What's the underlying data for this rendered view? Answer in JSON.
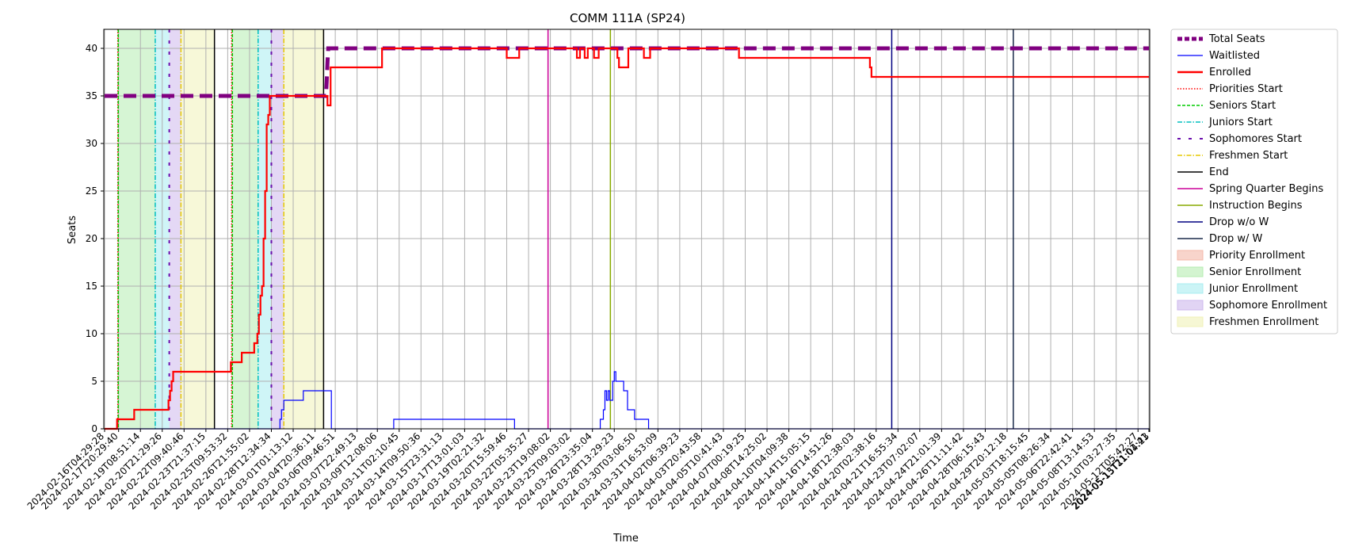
{
  "chart_data": {
    "type": "line",
    "title": "COMM 111A (SP24)",
    "xlabel": "Time",
    "ylabel": "Seats",
    "ylim": [
      0,
      42
    ],
    "xlim": [
      -0.05,
      67.05
    ],
    "grid": true,
    "legend_position": "outside-right",
    "y_ticks": [
      0,
      5,
      10,
      15,
      20,
      25,
      30,
      35,
      40
    ],
    "x_ticks": [
      "2024-02-16T04:29:28",
      "2024-02-17T20:29:40",
      "2024-02-19T08:51:14",
      "2024-02-20T21:29:26",
      "2024-02-22T09:40:46",
      "2024-02-23T21:37:15",
      "2024-02-25T09:53:32",
      "2024-02-26T21:55:02",
      "2024-02-28T12:34:34",
      "2024-03-01T01:13:12",
      "2024-03-04T20:36:11",
      "2024-03-06T09:46:51",
      "2024-03-07T22:49:13",
      "2024-03-09T12:08:06",
      "2024-03-11T02:10:45",
      "2024-03-14T09:50:36",
      "2024-03-15T23:31:13",
      "2024-03-17T13:01:03",
      "2024-03-19T02:21:32",
      "2024-03-20T15:59:46",
      "2024-03-22T05:35:27",
      "2024-03-23T19:08:02",
      "2024-03-25T09:03:02",
      "2024-03-26T23:35:04",
      "2024-03-28T13:29:23",
      "2024-03-30T03:06:50",
      "2024-03-31T16:53:09",
      "2024-04-02T06:39:23",
      "2024-04-03T20:43:58",
      "2024-04-05T10:41:43",
      "2024-04-07T00:19:25",
      "2024-04-08T14:25:02",
      "2024-04-10T04:09:38",
      "2024-04-14T15:05:15",
      "2024-04-16T14:51:26",
      "2024-04-18T12:38:03",
      "2024-04-20T02:38:16",
      "2024-04-21T16:55:34",
      "2024-04-23T07:02:07",
      "2024-04-24T21:01:39",
      "2024-04-26T11:11:42",
      "2024-04-28T06:15:43",
      "2024-04-29T20:12:18",
      "2024-05-03T18:15:45",
      "2024-05-05T08:26:34",
      "2024-05-06T22:42:41",
      "2024-05-08T13:14:53",
      "2024-05-10T03:27:35",
      "2024-05-12T05:42:27",
      "2024-05-13T21:01:41",
      "2024-05-15T11:04:23"
    ],
    "x_tick_positions": [
      0,
      0.9,
      2.3,
      3.7,
      5.1,
      6.5,
      7.9,
      9.3,
      10.7,
      12.1,
      13.5,
      14.8,
      16.2,
      17.5,
      18.9,
      20.3,
      21.7,
      23.1,
      24.4,
      25.8,
      27.2,
      28.6,
      29.9,
      31.3,
      32.7,
      34.1,
      35.5,
      36.9,
      38.3,
      39.7,
      41.1,
      42.5,
      43.9,
      45.3,
      46.7,
      48.1,
      49.5,
      50.9,
      52.3,
      53.7,
      55.1,
      56.5,
      57.9,
      59.3,
      60.7,
      62.1,
      63.5,
      64.9,
      66.3,
      67.0,
      67.05
    ],
    "series": [
      {
        "name": "Total Seats",
        "color": "#800080",
        "style": "dashed-thick",
        "x": [
          0,
          14.2,
          14.25,
          14.3,
          14.35,
          67
        ],
        "y": [
          35,
          35,
          36.5,
          38.5,
          40,
          40
        ]
      },
      {
        "name": "Waitlisted",
        "color": "#0000ff",
        "style": "step",
        "x": [
          0,
          11.2,
          11.25,
          11.35,
          11.5,
          12.7,
          12.75,
          14.5,
          14.55,
          18.5,
          18.55,
          26.3,
          26.35,
          31.8,
          31.9,
          32.0,
          32.1,
          32.2,
          32.3,
          32.4,
          32.5,
          32.6,
          32.7,
          32.8,
          32.9,
          33.3,
          33.4,
          33.55,
          33.7,
          34.0,
          34.2,
          34.4,
          34.6,
          34.9,
          35.0,
          67
        ],
        "y": [
          0,
          0,
          1,
          2,
          3,
          3,
          4,
          4,
          0,
          0,
          1,
          0,
          0,
          1,
          1,
          2,
          4,
          3,
          4,
          3,
          3,
          5,
          6,
          5,
          5,
          4,
          4,
          2,
          2,
          1,
          1,
          1,
          1,
          0,
          0,
          0
        ]
      },
      {
        "name": "Enrolled",
        "color": "#ff0000",
        "style": "step",
        "x": [
          0,
          0.8,
          1.9,
          4.0,
          4.1,
          4.2,
          4.3,
          4.4,
          7.9,
          8.1,
          8.8,
          9.6,
          9.8,
          9.9,
          10.0,
          10.1,
          10.2,
          10.3,
          10.4,
          10.5,
          10.6,
          10.7,
          10.8,
          10.9,
          11.0,
          11.1,
          11.3,
          11.5,
          14.3,
          14.5,
          17.8,
          25.8,
          26.6,
          30.3,
          30.5,
          30.8,
          31.0,
          31.4,
          31.7,
          32.9,
          33.0,
          33.6,
          34.1,
          34.6,
          35.0,
          35.3,
          40.7,
          49.1,
          49.2,
          67
        ],
        "y": [
          0,
          1,
          2,
          2,
          3,
          4,
          5,
          6,
          6,
          7,
          8,
          9,
          10,
          12,
          14,
          15,
          20,
          25,
          32,
          33,
          35,
          35,
          35,
          35,
          35,
          35,
          35,
          35,
          34,
          38,
          40,
          39,
          40,
          39,
          40,
          39,
          40,
          39,
          40,
          39,
          38,
          40,
          40,
          39,
          40,
          40,
          39,
          38,
          37,
          37
        ]
      }
    ],
    "vertical_lines": [
      {
        "name": "Priorities Start",
        "color": "#ff0000",
        "style": "dotted",
        "x": [
          0.85,
          8.15
        ]
      },
      {
        "name": "Seniors Start",
        "color": "#00cc00",
        "style": "dashed",
        "x": [
          0.88,
          8.2
        ]
      },
      {
        "name": "Juniors Start",
        "color": "#00bfbf",
        "style": "dashdot",
        "x": [
          3.25,
          9.85
        ]
      },
      {
        "name": "Sophomores Start",
        "color": "#6a0dad",
        "style": "dashed-loose",
        "x": [
          4.15,
          10.7
        ]
      },
      {
        "name": "Freshmen Start",
        "color": "#e6c800",
        "style": "dashdot",
        "x": [
          4.9,
          11.5
        ]
      },
      {
        "name": "End",
        "color": "#000000",
        "style": "solid",
        "x": [
          7.05,
          14.05
        ]
      },
      {
        "name": "Spring Quarter Begins",
        "color": "#cc0099",
        "style": "solid",
        "x": [
          28.45
        ]
      },
      {
        "name": "Instruction Begins",
        "color": "#88aa00",
        "style": "solid",
        "x": [
          32.45
        ]
      },
      {
        "name": "Drop w/o W",
        "color": "#000080",
        "style": "solid",
        "x": [
          50.5
        ]
      },
      {
        "name": "Drop w/ W",
        "color": "#1a2a4a",
        "style": "solid",
        "x": [
          58.3
        ]
      }
    ],
    "spans": [
      {
        "name": "Priority Enrollment",
        "color": "#f4b8a8",
        "ranges": [
          [
            0.85,
            0.88
          ],
          [
            8.15,
            8.2
          ]
        ]
      },
      {
        "name": "Senior Enrollment",
        "color": "#b5ecb0",
        "ranges": [
          [
            0.88,
            3.25
          ],
          [
            8.2,
            9.85
          ]
        ]
      },
      {
        "name": "Junior Enrollment",
        "color": "#a8ecf0",
        "ranges": [
          [
            3.25,
            4.15
          ],
          [
            9.85,
            10.7
          ]
        ]
      },
      {
        "name": "Sophomore Enrollment",
        "color": "#cdb8ec",
        "ranges": [
          [
            4.15,
            4.9
          ],
          [
            10.7,
            11.5
          ]
        ]
      },
      {
        "name": "Freshmen Enrollment",
        "color": "#f0f2b8",
        "ranges": [
          [
            4.9,
            7.05
          ],
          [
            11.5,
            14.05
          ]
        ]
      }
    ],
    "legend": [
      {
        "label": "Total Seats",
        "kind": "line",
        "color": "#800080",
        "dash": "6,3",
        "width": 5
      },
      {
        "label": "Waitlisted",
        "kind": "line",
        "color": "#0000ff",
        "dash": "",
        "width": 1.2
      },
      {
        "label": "Enrolled",
        "kind": "line",
        "color": "#ff0000",
        "dash": "",
        "width": 2.5
      },
      {
        "label": "Priorities Start",
        "kind": "line",
        "color": "#ff0000",
        "dash": "1.5,2",
        "width": 1.5
      },
      {
        "label": "Seniors Start",
        "kind": "line",
        "color": "#00cc00",
        "dash": "4,2",
        "width": 1.5
      },
      {
        "label": "Juniors Start",
        "kind": "line",
        "color": "#00bfbf",
        "dash": "6,2,1.5,2",
        "width": 1.5
      },
      {
        "label": "Sophomores Start",
        "kind": "line",
        "color": "#6a0dad",
        "dash": "4,10",
        "width": 2
      },
      {
        "label": "Freshmen Start",
        "kind": "line",
        "color": "#e6c800",
        "dash": "6,2,1.5,2",
        "width": 1.5
      },
      {
        "label": "End",
        "kind": "line",
        "color": "#000000",
        "dash": "",
        "width": 1.5
      },
      {
        "label": "Spring Quarter Begins",
        "kind": "line",
        "color": "#cc0099",
        "dash": "",
        "width": 1.5
      },
      {
        "label": "Instruction Begins",
        "kind": "line",
        "color": "#88aa00",
        "dash": "",
        "width": 1.5
      },
      {
        "label": "Drop w/o W",
        "kind": "line",
        "color": "#000080",
        "dash": "",
        "width": 1.5
      },
      {
        "label": "Drop w/ W",
        "kind": "line",
        "color": "#1a2a4a",
        "dash": "",
        "width": 1.5
      },
      {
        "label": "Priority Enrollment",
        "kind": "patch",
        "color": "#f4b8a8"
      },
      {
        "label": "Senior Enrollment",
        "kind": "patch",
        "color": "#b5ecb0"
      },
      {
        "label": "Junior Enrollment",
        "kind": "patch",
        "color": "#a8ecf0"
      },
      {
        "label": "Sophomore Enrollment",
        "kind": "patch",
        "color": "#cdb8ec"
      },
      {
        "label": "Freshmen Enrollment",
        "kind": "patch",
        "color": "#f0f2b8"
      }
    ]
  }
}
